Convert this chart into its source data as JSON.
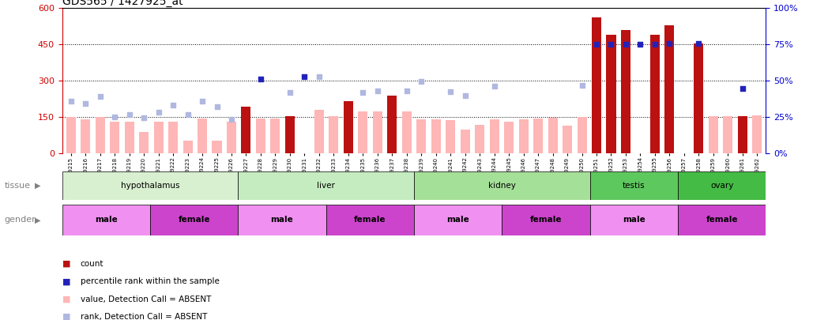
{
  "title": "GDS565 / 1427925_at",
  "samples": [
    "GSM19215",
    "GSM19216",
    "GSM19217",
    "GSM19218",
    "GSM19219",
    "GSM19220",
    "GSM19221",
    "GSM19222",
    "GSM19223",
    "GSM19224",
    "GSM19225",
    "GSM19226",
    "GSM19227",
    "GSM19228",
    "GSM19229",
    "GSM19230",
    "GSM19231",
    "GSM19232",
    "GSM19233",
    "GSM19234",
    "GSM19235",
    "GSM19236",
    "GSM19237",
    "GSM19238",
    "GSM19239",
    "GSM19240",
    "GSM19241",
    "GSM19242",
    "GSM19243",
    "GSM19244",
    "GSM19245",
    "GSM19246",
    "GSM19247",
    "GSM19248",
    "GSM19249",
    "GSM19250",
    "GSM19251",
    "GSM19252",
    "GSM19253",
    "GSM19254",
    "GSM19255",
    "GSM19256",
    "GSM19257",
    "GSM19258",
    "GSM19259",
    "GSM19260",
    "GSM19261",
    "GSM19262"
  ],
  "value_absent": [
    150,
    140,
    150,
    130,
    130,
    90,
    130,
    130,
    55,
    145,
    55,
    130,
    null,
    145,
    145,
    155,
    null,
    180,
    155,
    null,
    175,
    175,
    null,
    175,
    140,
    140,
    138,
    100,
    120,
    140,
    130,
    140,
    145,
    148,
    115,
    150,
    null,
    null,
    null,
    null,
    null,
    null,
    null,
    150,
    155,
    155,
    155,
    158
  ],
  "count_present": [
    null,
    null,
    null,
    null,
    null,
    null,
    null,
    null,
    null,
    null,
    null,
    null,
    195,
    null,
    null,
    155,
    null,
    null,
    null,
    215,
    null,
    null,
    240,
    null,
    null,
    null,
    null,
    null,
    null,
    null,
    null,
    null,
    null,
    null,
    null,
    null,
    560,
    490,
    510,
    null,
    490,
    530,
    null,
    455,
    null,
    null,
    155,
    null
  ],
  "rank_absent_left": [
    215,
    205,
    235,
    150,
    160,
    148,
    172,
    200,
    162,
    215,
    192,
    142,
    null,
    null,
    null,
    252,
    null,
    318,
    null,
    null,
    252,
    258,
    null,
    258,
    298,
    null,
    256,
    238,
    null,
    278,
    null,
    null,
    null,
    null,
    null,
    282,
    null,
    null,
    null,
    null,
    null,
    null,
    null,
    null,
    null,
    null,
    null,
    null
  ],
  "rank_present_left": [
    null,
    null,
    null,
    null,
    null,
    null,
    null,
    null,
    null,
    null,
    null,
    null,
    null,
    308,
    null,
    null,
    318,
    null,
    null,
    null,
    null,
    null,
    null,
    null,
    null,
    null,
    null,
    null,
    null,
    null,
    null,
    null,
    null,
    null,
    null,
    null,
    450,
    450,
    450,
    450,
    450,
    455,
    null,
    455,
    null,
    null,
    268,
    null
  ],
  "tissues": [
    {
      "label": "hypothalamus",
      "start": 0,
      "end": 12,
      "color": "#d8f0d0"
    },
    {
      "label": "liver",
      "start": 12,
      "end": 24,
      "color": "#c5ecc0"
    },
    {
      "label": "kidney",
      "start": 24,
      "end": 36,
      "color": "#a5e098"
    },
    {
      "label": "testis",
      "start": 36,
      "end": 42,
      "color": "#5dc85d"
    },
    {
      "label": "ovary",
      "start": 42,
      "end": 48,
      "color": "#44bb44"
    }
  ],
  "genders": [
    {
      "label": "male",
      "start": 0,
      "end": 6,
      "color": "#f090f0"
    },
    {
      "label": "female",
      "start": 6,
      "end": 12,
      "color": "#cc44cc"
    },
    {
      "label": "male",
      "start": 12,
      "end": 18,
      "color": "#f090f0"
    },
    {
      "label": "female",
      "start": 18,
      "end": 24,
      "color": "#cc44cc"
    },
    {
      "label": "male",
      "start": 24,
      "end": 30,
      "color": "#f090f0"
    },
    {
      "label": "female",
      "start": 30,
      "end": 36,
      "color": "#cc44cc"
    },
    {
      "label": "male",
      "start": 36,
      "end": 42,
      "color": "#f090f0"
    },
    {
      "label": "female",
      "start": 42,
      "end": 48,
      "color": "#cc44cc"
    }
  ],
  "ylim_left": [
    0,
    600
  ],
  "ylim_right": [
    0,
    100
  ],
  "yticks_left": [
    0,
    150,
    300,
    450,
    600
  ],
  "yticks_right": [
    0,
    25,
    50,
    75,
    100
  ],
  "bar_color_absent": "#ffb6b6",
  "bar_color_present": "#bb1111",
  "dot_color_absent": "#b0b8e0",
  "dot_color_present": "#2222bb",
  "title_color": "black",
  "left_axis_color": "#cc0000",
  "right_axis_color": "#0000cc"
}
